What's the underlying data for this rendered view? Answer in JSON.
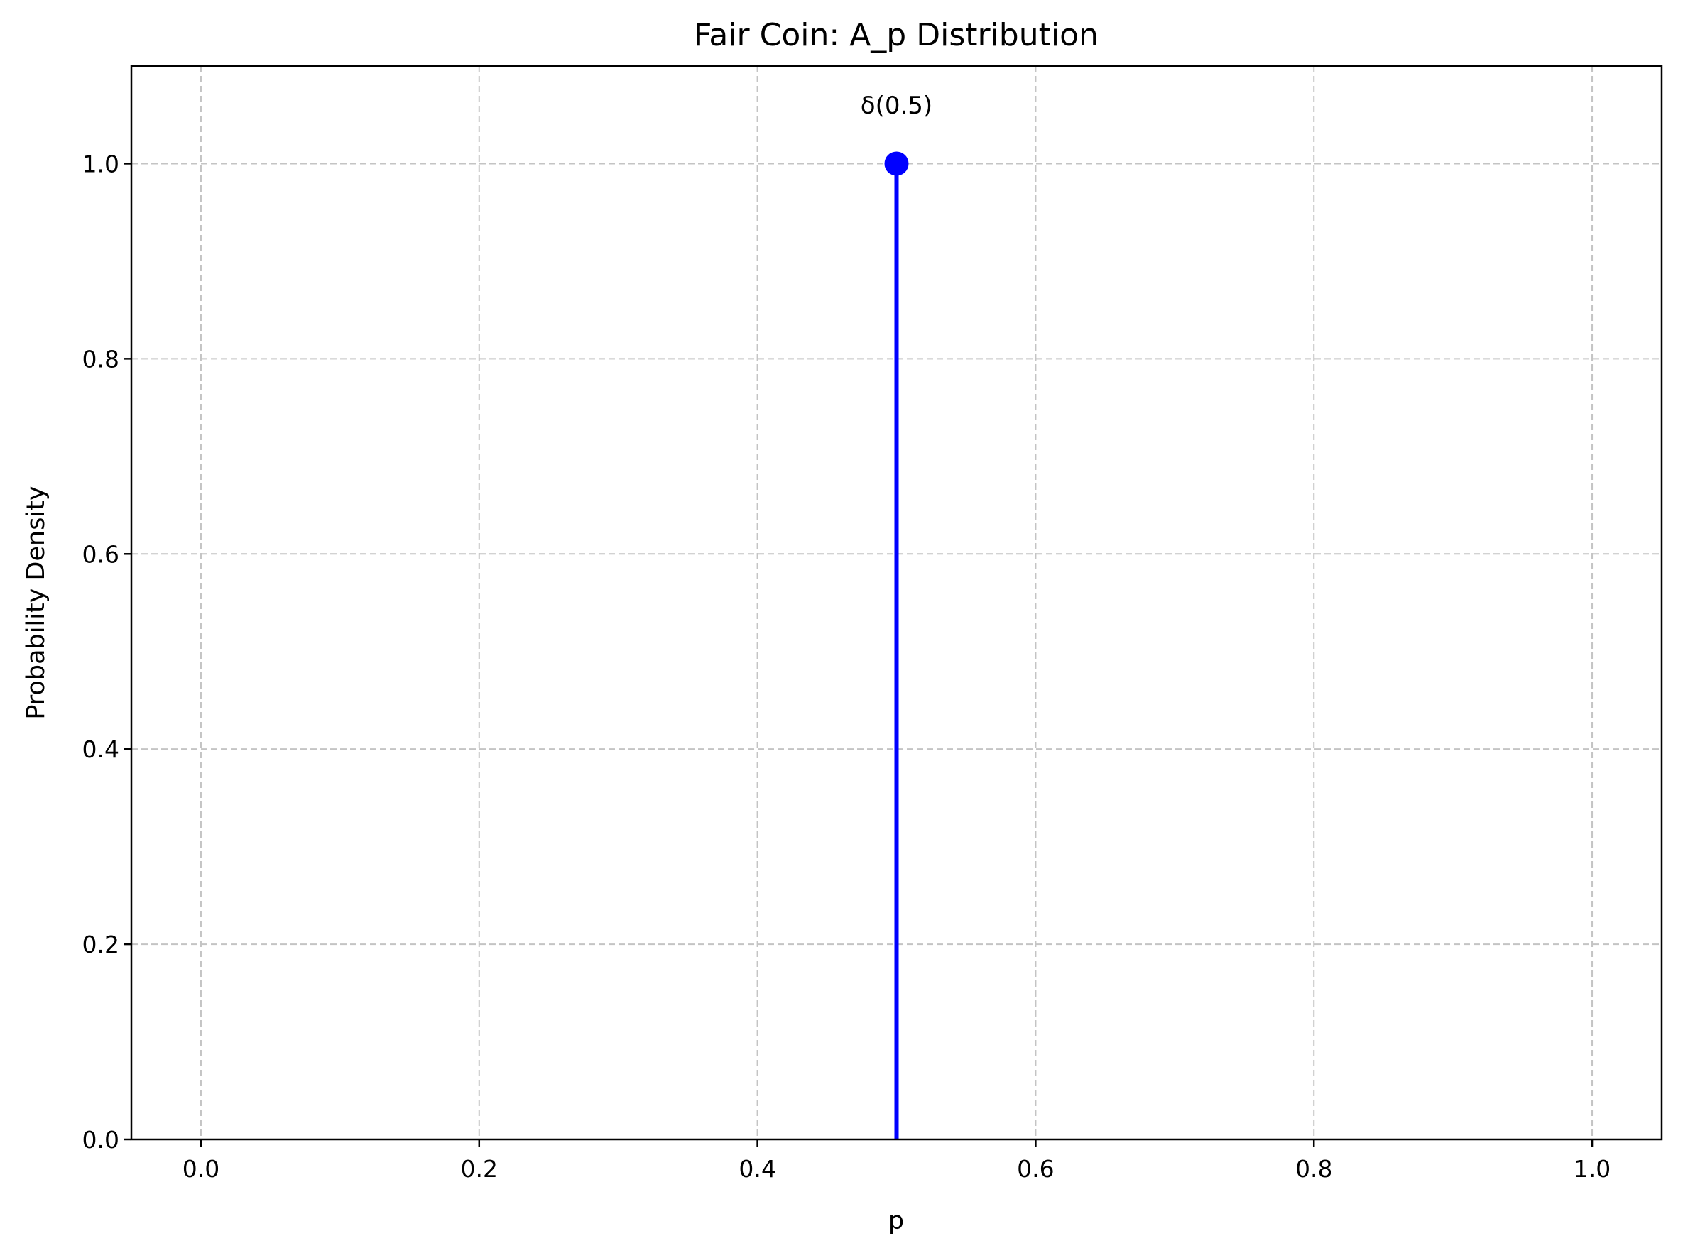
{
  "chart_data": {
    "type": "line",
    "title": "Fair Coin: A_p Distribution",
    "xlabel": "p",
    "ylabel": "Probability Density",
    "xlim": [
      -0.05,
      1.05
    ],
    "ylim": [
      0.0,
      1.1
    ],
    "x_ticks": [
      0.0,
      0.2,
      0.4,
      0.6,
      0.8,
      1.0
    ],
    "x_tick_labels": [
      "0.0",
      "0.2",
      "0.4",
      "0.6",
      "0.8",
      "1.0"
    ],
    "y_ticks": [
      0.0,
      0.2,
      0.4,
      0.6,
      0.8,
      1.0
    ],
    "y_tick_labels": [
      "0.0",
      "0.2",
      "0.4",
      "0.6",
      "0.8",
      "1.0"
    ],
    "grid": true,
    "series": [
      {
        "kind": "stem",
        "color": "#0000ff",
        "points": [
          {
            "x": 0.5,
            "y": 1.0
          }
        ]
      }
    ],
    "annotations": [
      {
        "text": "δ(0.5)",
        "x": 0.5,
        "y": 1.06
      }
    ]
  }
}
